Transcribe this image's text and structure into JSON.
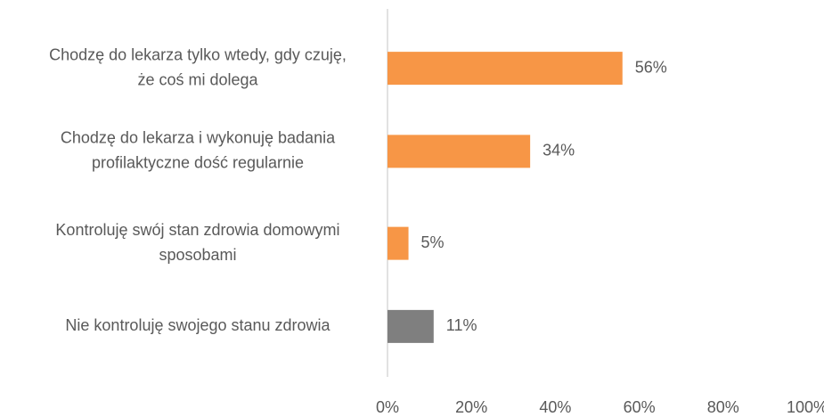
{
  "chart_data": {
    "type": "barh",
    "categories": [
      [
        "Chodzę do lekarza tylko wtedy, gdy czuję,",
        "że coś mi dolega"
      ],
      [
        "Chodzę do lekarza i wykonuję badania",
        "profilaktyczne dość regularnie"
      ],
      [
        "Kontroluję swój stan zdrowia domowymi",
        "sposobami"
      ],
      [
        "Nie kontroluję swojego stanu zdrowia"
      ]
    ],
    "values": [
      56,
      34,
      5,
      11
    ],
    "value_labels": [
      "56%",
      "34%",
      "5%",
      "11%"
    ],
    "colors": [
      "#f79646",
      "#f79646",
      "#f79646",
      "#7f7f7f"
    ],
    "xlim": [
      0,
      100
    ],
    "xticks": [
      {
        "value": 0,
        "label": "0%"
      },
      {
        "value": 20,
        "label": "20%"
      },
      {
        "value": 40,
        "label": "40%"
      },
      {
        "value": 60,
        "label": "60%"
      },
      {
        "value": 80,
        "label": "80%"
      },
      {
        "value": 100,
        "label": "100%"
      }
    ]
  }
}
